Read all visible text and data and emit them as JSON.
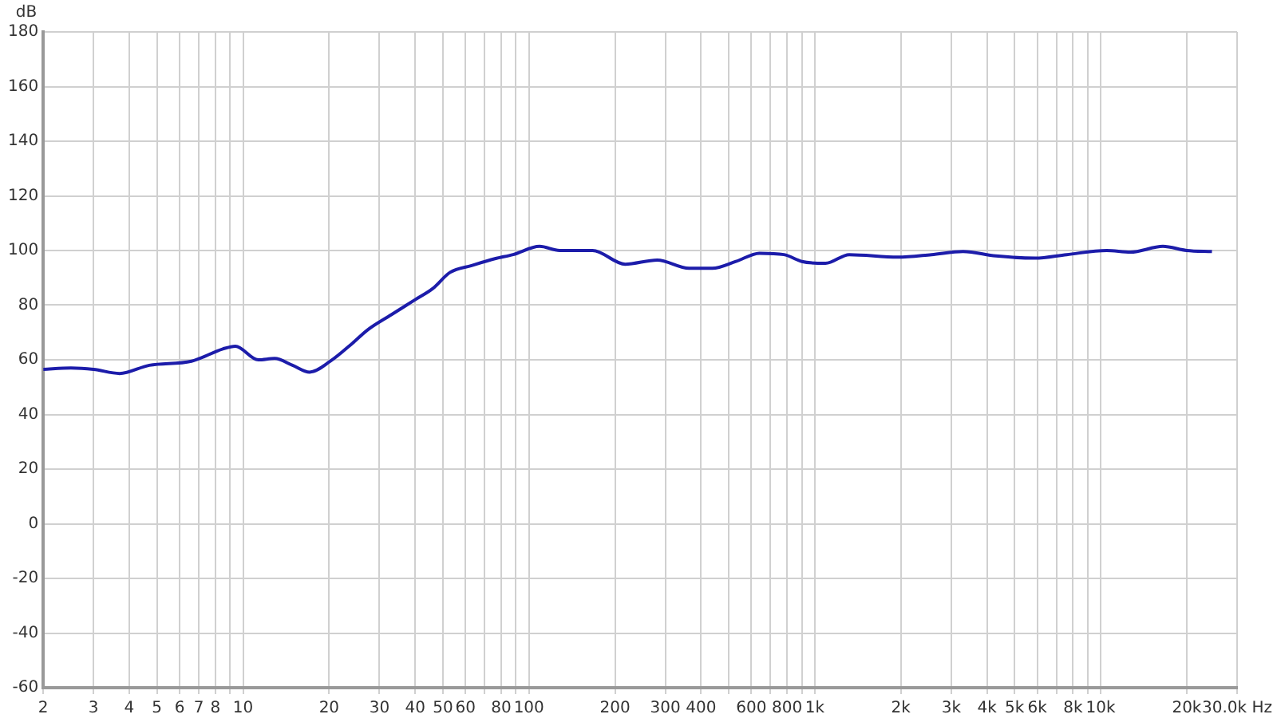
{
  "chart_data": {
    "type": "line",
    "ylabel": "dB",
    "log": "x",
    "grid": true,
    "legend": false,
    "marker": "none",
    "line_style": "solid",
    "xlim": [
      2,
      30000
    ],
    "ylim": [
      -60,
      180
    ],
    "yticks": [
      -60,
      -40,
      -20,
      0,
      20,
      40,
      60,
      80,
      100,
      120,
      140,
      160,
      180
    ],
    "xticks": [
      2,
      3,
      4,
      5,
      6,
      7,
      8,
      {
        "value": 9,
        "label": null
      },
      10,
      20,
      30,
      40,
      50,
      60,
      {
        "value": 70,
        "label": null
      },
      80,
      {
        "value": 90,
        "label": null
      },
      100,
      200,
      300,
      400,
      {
        "value": 500,
        "label": null
      },
      600,
      {
        "value": 700,
        "label": null
      },
      800,
      {
        "value": 900,
        "label": null
      },
      {
        "value": 1000,
        "label": "1k"
      },
      {
        "value": 2000,
        "label": "2k"
      },
      {
        "value": 3000,
        "label": "3k"
      },
      {
        "value": 4000,
        "label": "4k"
      },
      {
        "value": 5000,
        "label": "5k"
      },
      {
        "value": 6000,
        "label": "6k"
      },
      {
        "value": 7000,
        "label": null
      },
      {
        "value": 8000,
        "label": "8k"
      },
      {
        "value": 9000,
        "label": null
      },
      {
        "value": 10000,
        "label": "10k"
      },
      {
        "value": 20000,
        "label": "20k"
      },
      {
        "value": 30000,
        "label": "30.0k Hz"
      }
    ],
    "series": [
      {
        "color": "#1c1caa",
        "x": [
          2,
          2.5,
          3,
          3.7,
          4.7,
          6.6,
          8.5,
          9.4,
          11.3,
          12.9,
          14.9,
          17.1,
          20.2,
          24.1,
          27.3,
          33,
          40,
          46,
          53,
          63,
          76,
          88,
          109,
          128,
          167,
          217,
          281,
          363,
          438,
          530,
          640,
          780,
          900,
          1090,
          1320,
          1950,
          2560,
          3300,
          4300,
          5900,
          7600,
          10500,
          12700,
          16500,
          20000,
          24500
        ],
        "values": [
          56.5,
          57,
          56.5,
          55,
          58,
          59.5,
          64,
          65,
          60,
          60.5,
          58,
          55.5,
          59.5,
          66,
          71,
          76.5,
          82,
          86,
          92,
          94.5,
          97,
          98.5,
          101.5,
          100,
          100,
          95,
          96.5,
          93.5,
          93.5,
          96,
          99,
          98.5,
          96,
          95.3,
          98.5,
          97.6,
          98.5,
          99.6,
          98,
          97.2,
          98.5,
          100,
          99.4,
          101.5,
          100,
          99.6
        ]
      }
    ]
  }
}
